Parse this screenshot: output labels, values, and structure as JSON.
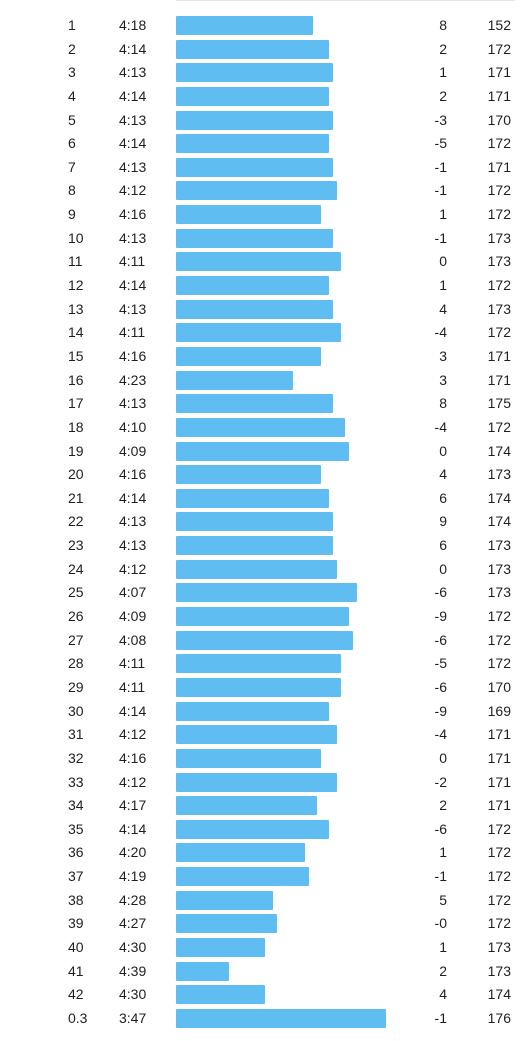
{
  "splits": [
    {
      "km": "1",
      "pace": "4:18",
      "elevation": "8",
      "heart_rate": "152"
    },
    {
      "km": "2",
      "pace": "4:14",
      "elevation": "2",
      "heart_rate": "172"
    },
    {
      "km": "3",
      "pace": "4:13",
      "elevation": "1",
      "heart_rate": "171"
    },
    {
      "km": "4",
      "pace": "4:14",
      "elevation": "2",
      "heart_rate": "171"
    },
    {
      "km": "5",
      "pace": "4:13",
      "elevation": "-3",
      "heart_rate": "170"
    },
    {
      "km": "6",
      "pace": "4:14",
      "elevation": "-5",
      "heart_rate": "172"
    },
    {
      "km": "7",
      "pace": "4:13",
      "elevation": "-1",
      "heart_rate": "171"
    },
    {
      "km": "8",
      "pace": "4:12",
      "elevation": "-1",
      "heart_rate": "172"
    },
    {
      "km": "9",
      "pace": "4:16",
      "elevation": "1",
      "heart_rate": "172"
    },
    {
      "km": "10",
      "pace": "4:13",
      "elevation": "-1",
      "heart_rate": "173"
    },
    {
      "km": "11",
      "pace": "4:11",
      "elevation": "0",
      "heart_rate": "173"
    },
    {
      "km": "12",
      "pace": "4:14",
      "elevation": "1",
      "heart_rate": "172"
    },
    {
      "km": "13",
      "pace": "4:13",
      "elevation": "4",
      "heart_rate": "173"
    },
    {
      "km": "14",
      "pace": "4:11",
      "elevation": "-4",
      "heart_rate": "172"
    },
    {
      "km": "15",
      "pace": "4:16",
      "elevation": "3",
      "heart_rate": "171"
    },
    {
      "km": "16",
      "pace": "4:23",
      "elevation": "3",
      "heart_rate": "171"
    },
    {
      "km": "17",
      "pace": "4:13",
      "elevation": "8",
      "heart_rate": "175"
    },
    {
      "km": "18",
      "pace": "4:10",
      "elevation": "-4",
      "heart_rate": "172"
    },
    {
      "km": "19",
      "pace": "4:09",
      "elevation": "0",
      "heart_rate": "174"
    },
    {
      "km": "20",
      "pace": "4:16",
      "elevation": "4",
      "heart_rate": "173"
    },
    {
      "km": "21",
      "pace": "4:14",
      "elevation": "6",
      "heart_rate": "174"
    },
    {
      "km": "22",
      "pace": "4:13",
      "elevation": "9",
      "heart_rate": "174"
    },
    {
      "km": "23",
      "pace": "4:13",
      "elevation": "6",
      "heart_rate": "173"
    },
    {
      "km": "24",
      "pace": "4:12",
      "elevation": "0",
      "heart_rate": "173"
    },
    {
      "km": "25",
      "pace": "4:07",
      "elevation": "-6",
      "heart_rate": "173"
    },
    {
      "km": "26",
      "pace": "4:09",
      "elevation": "-9",
      "heart_rate": "172"
    },
    {
      "km": "27",
      "pace": "4:08",
      "elevation": "-6",
      "heart_rate": "172"
    },
    {
      "km": "28",
      "pace": "4:11",
      "elevation": "-5",
      "heart_rate": "172"
    },
    {
      "km": "29",
      "pace": "4:11",
      "elevation": "-6",
      "heart_rate": "170"
    },
    {
      "km": "30",
      "pace": "4:14",
      "elevation": "-9",
      "heart_rate": "169"
    },
    {
      "km": "31",
      "pace": "4:12",
      "elevation": "-4",
      "heart_rate": "171"
    },
    {
      "km": "32",
      "pace": "4:16",
      "elevation": "0",
      "heart_rate": "171"
    },
    {
      "km": "33",
      "pace": "4:12",
      "elevation": "-2",
      "heart_rate": "171"
    },
    {
      "km": "34",
      "pace": "4:17",
      "elevation": "2",
      "heart_rate": "171"
    },
    {
      "km": "35",
      "pace": "4:14",
      "elevation": "-6",
      "heart_rate": "172"
    },
    {
      "km": "36",
      "pace": "4:20",
      "elevation": "1",
      "heart_rate": "172"
    },
    {
      "km": "37",
      "pace": "4:19",
      "elevation": "-1",
      "heart_rate": "172"
    },
    {
      "km": "38",
      "pace": "4:28",
      "elevation": "5",
      "heart_rate": "172"
    },
    {
      "km": "39",
      "pace": "4:27",
      "elevation": "-0",
      "heart_rate": "172"
    },
    {
      "km": "40",
      "pace": "4:30",
      "elevation": "1",
      "heart_rate": "173"
    },
    {
      "km": "41",
      "pace": "4:39",
      "elevation": "2",
      "heart_rate": "173"
    },
    {
      "km": "42",
      "pace": "4:30",
      "elevation": "4",
      "heart_rate": "174"
    },
    {
      "km": "0.3",
      "pace": "3:47",
      "elevation": "-1",
      "heart_rate": "176"
    }
  ],
  "colors": {
    "pace_bar": "#60bdf2",
    "text": "#1f1f1f",
    "divider": "#e6e6e6"
  }
}
